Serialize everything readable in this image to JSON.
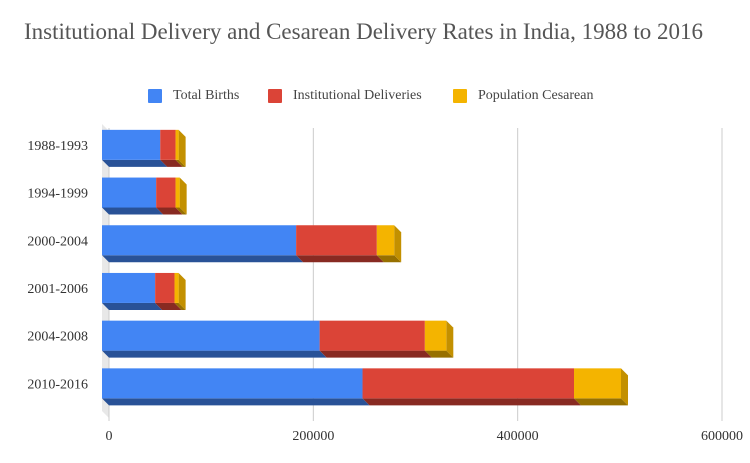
{
  "title": "Institutional Delivery and Cesarean Delivery Rates in India, 1988 to 2016",
  "colors": {
    "total_births": "#4285f4",
    "institutional_deliveries": "#db4437",
    "population_cesarean": "#f4b400",
    "gridline": "#cccccc",
    "text": "#333333"
  },
  "chart_data": {
    "type": "bar",
    "orientation": "horizontal",
    "stacked": true,
    "three_d": true,
    "title": "Institutional Delivery and Cesarean Delivery Rates in India, 1988 to 2016",
    "xlabel": "",
    "ylabel": "",
    "categories": [
      "1988-1993",
      "1994-1999",
      "2000-2004",
      "2001-2006",
      "2004-2008",
      "2010-2016"
    ],
    "series": [
      {
        "name": "Total Births",
        "values": [
          57000,
          53000,
          190000,
          52000,
          213000,
          255000
        ]
      },
      {
        "name": "Institutional Deliveries",
        "values": [
          15000,
          19000,
          79000,
          19000,
          103000,
          207000
        ]
      },
      {
        "name": "Population Cesarean",
        "values": [
          3000,
          4000,
          17000,
          4000,
          21000,
          46000
        ]
      }
    ],
    "xlim": [
      0,
      600000
    ],
    "xticks": [
      "0",
      "200000",
      "400000",
      "600000"
    ],
    "grid": true,
    "legend": "top"
  }
}
